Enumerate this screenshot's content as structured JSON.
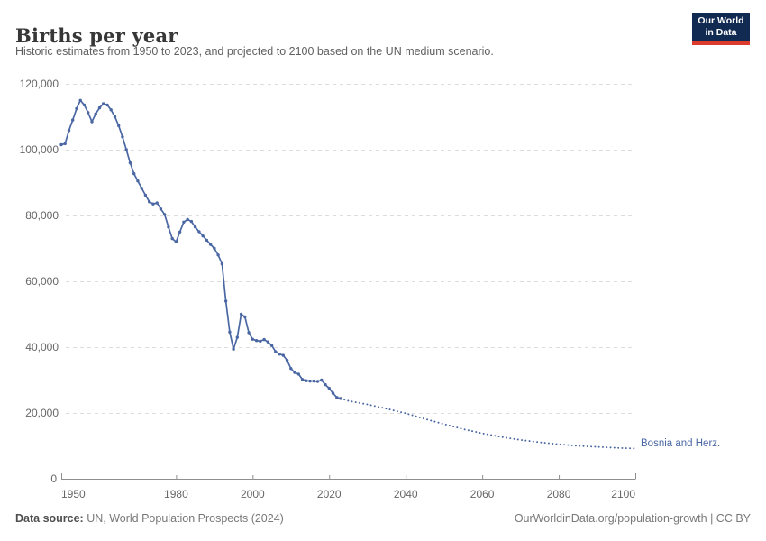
{
  "header": {
    "title": "Births per year",
    "subtitle": "Historic estimates from 1950 to 2023, and projected to 2100 based on the UN medium scenario."
  },
  "logo": {
    "line1": "Our World",
    "line2": "in Data"
  },
  "series_label": "Bosnia and Herz.",
  "footer": {
    "source_label": "Data source:",
    "source_text": " UN, World Population Prospects (2024)",
    "right_text": "OurWorldinData.org/population-growth | CC BY"
  },
  "colors": {
    "series_blue": "#4a67a3",
    "grid_gray": "#dcdcdc",
    "axis_gray": "#8f8f8f",
    "tick_text": "#666666",
    "title_text": "#373737",
    "subtitle_text": "#606060",
    "footer_text": "#787878",
    "logo_navy": "#112a51",
    "logo_red": "#dc3a2d"
  },
  "chart_data": {
    "type": "line",
    "title": "Births per year",
    "entity": "Bosnia and Herzegovina",
    "xlabel": "",
    "ylabel": "",
    "xlim": [
      1950,
      2100
    ],
    "ylim": [
      0,
      120000
    ],
    "grid": "horizontal-dashed",
    "legend": "inline-right",
    "x_ticks": [
      1950,
      1980,
      2000,
      2020,
      2040,
      2060,
      2080,
      2100
    ],
    "y_ticks": [
      0,
      20000,
      40000,
      60000,
      80000,
      100000,
      120000
    ],
    "y_tick_labels": [
      "0",
      "20,000",
      "40,000",
      "60,000",
      "80,000",
      "100,000",
      "120,000"
    ],
    "series": [
      {
        "name": "Historic estimates (1950-2023)",
        "style": "solid",
        "markers": true,
        "points": [
          [
            1950,
            101500
          ],
          [
            1951,
            101800
          ],
          [
            1952,
            105800
          ],
          [
            1953,
            109000
          ],
          [
            1954,
            112500
          ],
          [
            1955,
            115000
          ],
          [
            1956,
            113600
          ],
          [
            1957,
            111300
          ],
          [
            1958,
            108500
          ],
          [
            1959,
            110900
          ],
          [
            1960,
            112700
          ],
          [
            1961,
            114000
          ],
          [
            1962,
            113600
          ],
          [
            1963,
            112100
          ],
          [
            1964,
            110000
          ],
          [
            1965,
            107300
          ],
          [
            1966,
            103900
          ],
          [
            1967,
            100000
          ],
          [
            1968,
            96000
          ],
          [
            1969,
            92700
          ],
          [
            1970,
            90500
          ],
          [
            1971,
            88300
          ],
          [
            1972,
            86200
          ],
          [
            1973,
            84200
          ],
          [
            1974,
            83500
          ],
          [
            1975,
            83800
          ],
          [
            1976,
            82000
          ],
          [
            1977,
            80300
          ],
          [
            1978,
            76500
          ],
          [
            1979,
            73000
          ],
          [
            1980,
            72000
          ],
          [
            1981,
            75000
          ],
          [
            1982,
            78000
          ],
          [
            1983,
            78800
          ],
          [
            1984,
            78200
          ],
          [
            1985,
            76500
          ],
          [
            1986,
            75100
          ],
          [
            1987,
            73800
          ],
          [
            1988,
            72500
          ],
          [
            1989,
            71200
          ],
          [
            1990,
            70000
          ],
          [
            1991,
            68000
          ],
          [
            1992,
            65300
          ],
          [
            1993,
            54000
          ],
          [
            1994,
            44600
          ],
          [
            1995,
            39400
          ],
          [
            1996,
            43000
          ],
          [
            1997,
            50000
          ],
          [
            1998,
            49200
          ],
          [
            1999,
            44400
          ],
          [
            2000,
            42400
          ],
          [
            2001,
            42000
          ],
          [
            2002,
            41800
          ],
          [
            2003,
            42300
          ],
          [
            2004,
            41600
          ],
          [
            2005,
            40500
          ],
          [
            2006,
            38600
          ],
          [
            2007,
            37900
          ],
          [
            2008,
            37500
          ],
          [
            2009,
            36000
          ],
          [
            2010,
            33500
          ],
          [
            2011,
            32300
          ],
          [
            2012,
            31800
          ],
          [
            2013,
            30200
          ],
          [
            2014,
            29800
          ],
          [
            2015,
            29700
          ],
          [
            2016,
            29700
          ],
          [
            2017,
            29600
          ],
          [
            2018,
            30000
          ],
          [
            2019,
            28600
          ],
          [
            2020,
            27500
          ],
          [
            2021,
            26000
          ],
          [
            2022,
            24700
          ],
          [
            2023,
            24400
          ]
        ]
      },
      {
        "name": "UN medium scenario projection (2024-2100)",
        "style": "dotted",
        "markers": false,
        "points": [
          [
            2023,
            24400
          ],
          [
            2025,
            23700
          ],
          [
            2030,
            22600
          ],
          [
            2035,
            21300
          ],
          [
            2040,
            19900
          ],
          [
            2045,
            18200
          ],
          [
            2050,
            16600
          ],
          [
            2055,
            15100
          ],
          [
            2060,
            13800
          ],
          [
            2065,
            12700
          ],
          [
            2070,
            11800
          ],
          [
            2075,
            11100
          ],
          [
            2080,
            10500
          ],
          [
            2085,
            10000
          ],
          [
            2090,
            9700
          ],
          [
            2095,
            9400
          ],
          [
            2100,
            9200
          ]
        ]
      }
    ]
  }
}
